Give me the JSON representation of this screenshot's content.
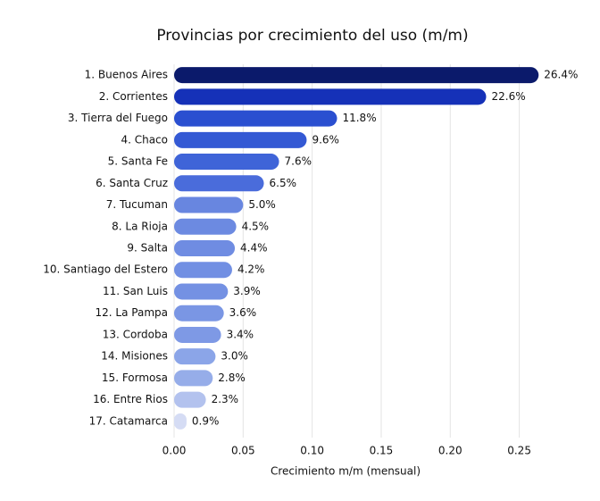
{
  "chart_data": {
    "type": "barh",
    "title": "Provincias por crecimiento del uso (m/m)",
    "xlabel": "Crecimiento m/m (mensual)",
    "categories": [
      "1. Buenos Aires",
      "2. Corrientes",
      "3. Tierra del Fuego",
      "4. Chaco",
      "5. Santa Fe",
      "6. Santa Cruz",
      "7. Tucuman",
      "8. La Rioja",
      "9. Salta",
      "10. Santiago del Estero",
      "11. San Luis",
      "12. La Pampa",
      "13. Cordoba",
      "14. Misiones",
      "15. Formosa",
      "16. Entre Rios",
      "17. Catamarca"
    ],
    "values": [
      0.264,
      0.226,
      0.118,
      0.096,
      0.076,
      0.065,
      0.05,
      0.045,
      0.044,
      0.042,
      0.039,
      0.036,
      0.034,
      0.03,
      0.028,
      0.023,
      0.009
    ],
    "value_labels": [
      "26.4%",
      "22.6%",
      "11.8%",
      "9.6%",
      "7.6%",
      "6.5%",
      "5.0%",
      "4.5%",
      "4.4%",
      "4.2%",
      "3.9%",
      "3.6%",
      "3.4%",
      "3.0%",
      "2.8%",
      "2.3%",
      "0.9%"
    ],
    "colors": [
      "#0b1a6b",
      "#1531b8",
      "#2a4fd0",
      "#3459d4",
      "#3f64d8",
      "#4a6cdb",
      "#6886e0",
      "#6c8ae1",
      "#6f8ce2",
      "#718fe3",
      "#7491e3",
      "#7a96e4",
      "#7e99e5",
      "#8ba5e8",
      "#96ade9",
      "#b3c2ee",
      "#d5dcf4"
    ],
    "xlim": [
      0,
      0.28
    ],
    "xticks": [
      {
        "value": 0,
        "label": "0.00"
      },
      0.05,
      {
        "value": 0.1,
        "label": "0.10"
      },
      0.15,
      {
        "value": 0.2,
        "label": "0.20"
      },
      0.25
    ],
    "grid": true
  }
}
